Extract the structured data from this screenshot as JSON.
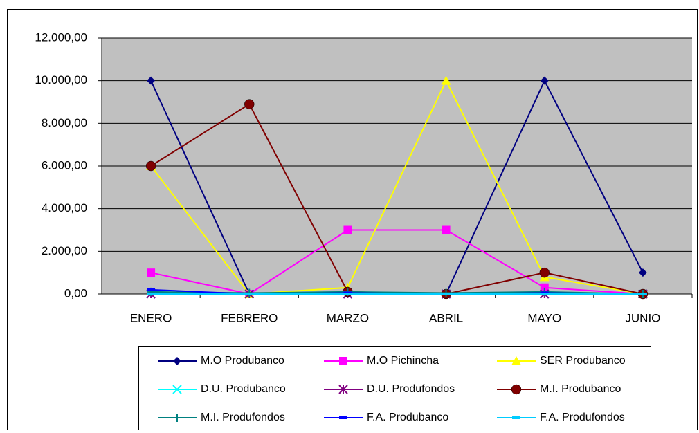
{
  "chart_data": {
    "type": "line",
    "categories": [
      "ENERO",
      "FEBRERO",
      "MARZO",
      "ABRIL",
      "MAYO",
      "JUNIO"
    ],
    "ylim": [
      0,
      12000
    ],
    "yticks": [
      {
        "value": 0,
        "label": "0,00"
      },
      {
        "value": 2000,
        "label": "2.000,00"
      },
      {
        "value": 4000,
        "label": "4.000,00"
      },
      {
        "value": 6000,
        "label": "6.000,00"
      },
      {
        "value": 8000,
        "label": "8.000,00"
      },
      {
        "value": 10000,
        "label": "10.000,00"
      },
      {
        "value": 12000,
        "label": "12.000,00"
      }
    ],
    "grid": true,
    "series": [
      {
        "name": "M.O Produbanco",
        "color": "#000080",
        "marker": "diamond",
        "values": [
          10000,
          0,
          0,
          0,
          10000,
          1000
        ]
      },
      {
        "name": "M.O Pichincha",
        "color": "#ff00ff",
        "marker": "square",
        "values": [
          1000,
          0,
          3000,
          3000,
          300,
          0
        ]
      },
      {
        "name": "SER Produbanco",
        "color": "#ffff00",
        "marker": "triangle",
        "values": [
          6000,
          0,
          300,
          10000,
          800,
          0
        ]
      },
      {
        "name": "D.U. Produbanco",
        "color": "#00ffff",
        "marker": "x",
        "values": [
          0,
          0,
          0,
          0,
          0,
          0
        ]
      },
      {
        "name": "D.U. Produfondos",
        "color": "#800080",
        "marker": "star",
        "values": [
          0,
          0,
          0,
          0,
          0,
          0
        ]
      },
      {
        "name": "M.I. Produbanco",
        "color": "#800000",
        "marker": "circle",
        "values": [
          6000,
          8900,
          100,
          0,
          1000,
          0
        ]
      },
      {
        "name": "M.I. Produfondos",
        "color": "#008080",
        "marker": "plus",
        "values": [
          100,
          50,
          100,
          50,
          100,
          0
        ]
      },
      {
        "name": "F.A. Produbanco",
        "color": "#0000ff",
        "marker": "dash",
        "values": [
          200,
          0,
          50,
          0,
          50,
          0
        ]
      },
      {
        "name": "F.A. Produfondos",
        "color": "#00ccff",
        "marker": "dash",
        "values": [
          0,
          0,
          0,
          0,
          0,
          0
        ]
      }
    ]
  }
}
